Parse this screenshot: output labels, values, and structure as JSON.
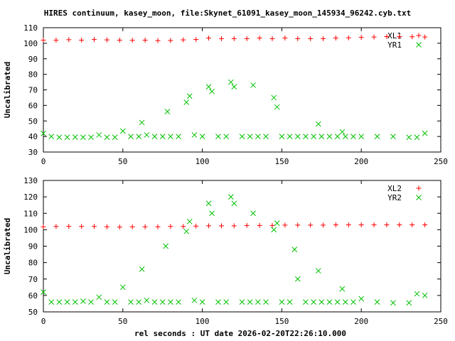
{
  "figure": {
    "title": "HIRES continuum, kasey_moon, file:Skynet_61091_kasey_moon_145934_96242.cyb.txt",
    "xlabel": "rel seconds : UT date 2026-02-20T22:26:10.000"
  },
  "chart_data": [
    {
      "type": "scatter",
      "ylabel": "Uncalibrated",
      "xlim": [
        0,
        250
      ],
      "ylim": [
        30,
        110
      ],
      "xticks": [
        0,
        50,
        100,
        150,
        200,
        250
      ],
      "yticks": [
        30,
        40,
        50,
        60,
        70,
        80,
        90,
        100,
        110
      ],
      "grid": false,
      "legend": "top-right",
      "series": [
        {
          "name": "XL1",
          "marker": "plus",
          "color": "#ff0000",
          "x": [
            0,
            8,
            16,
            24,
            32,
            40,
            48,
            56,
            64,
            72,
            80,
            88,
            96,
            104,
            112,
            120,
            128,
            136,
            144,
            152,
            160,
            168,
            176,
            184,
            192,
            200,
            208,
            216,
            224,
            232,
            240
          ],
          "y": [
            102.0,
            102.0,
            102.3,
            102.0,
            102.4,
            102.2,
            102.0,
            101.9,
            102.0,
            101.7,
            101.8,
            102.2,
            102.4,
            103.3,
            103.0,
            103.0,
            103.0,
            103.4,
            103.0,
            103.4,
            103.0,
            103.0,
            103.0,
            103.4,
            103.5,
            103.8,
            104.0,
            104.3,
            104.3,
            104.2,
            104.0
          ]
        },
        {
          "name": "YR1",
          "marker": "cross",
          "color": "#00c000",
          "x": [
            0,
            5,
            10,
            15,
            20,
            25,
            30,
            35,
            40,
            45,
            50,
            55,
            60,
            62,
            65,
            70,
            75,
            78,
            80,
            85,
            90,
            92,
            95,
            100,
            104,
            106,
            110,
            115,
            118,
            120,
            125,
            130,
            132,
            135,
            140,
            145,
            147,
            150,
            155,
            160,
            165,
            170,
            173,
            175,
            180,
            185,
            188,
            190,
            195,
            200,
            210,
            220,
            230,
            235,
            240
          ],
          "y": [
            42,
            40,
            39.5,
            39.5,
            39.6,
            39.5,
            39.5,
            41,
            39.5,
            39.5,
            43.5,
            40,
            40,
            49,
            41,
            40,
            40,
            56,
            40,
            40,
            62,
            66,
            41,
            40,
            72,
            69,
            40,
            40,
            75,
            72,
            40,
            40,
            73,
            40,
            40,
            65,
            59,
            40,
            40,
            40,
            40,
            40,
            48,
            40,
            40,
            40,
            43,
            40,
            40,
            40,
            40,
            40,
            39.5,
            39.5,
            42
          ]
        }
      ]
    },
    {
      "type": "scatter",
      "ylabel": "Uncalibrated",
      "xlim": [
        0,
        250
      ],
      "ylim": [
        50,
        130
      ],
      "xticks": [
        0,
        50,
        100,
        150,
        200,
        250
      ],
      "yticks": [
        50,
        60,
        70,
        80,
        90,
        100,
        110,
        120,
        130
      ],
      "grid": false,
      "legend": "top-right",
      "series": [
        {
          "name": "XL2",
          "marker": "plus",
          "color": "#ff0000",
          "x": [
            0,
            8,
            16,
            24,
            32,
            40,
            48,
            56,
            64,
            72,
            80,
            88,
            96,
            104,
            112,
            120,
            128,
            136,
            144,
            152,
            160,
            168,
            176,
            184,
            192,
            200,
            208,
            216,
            224,
            232,
            240
          ],
          "y": [
            101.8,
            102.0,
            102.0,
            102.0,
            102.0,
            101.8,
            101.6,
            101.8,
            101.8,
            101.8,
            102.0,
            102.0,
            102.2,
            102.4,
            102.4,
            102.4,
            102.6,
            102.6,
            102.6,
            102.8,
            102.8,
            102.8,
            102.8,
            103.0,
            103.0,
            103.0,
            103.0,
            103.0,
            103.0,
            103.0,
            103.0
          ]
        },
        {
          "name": "YR2",
          "marker": "cross",
          "color": "#00c000",
          "x": [
            0,
            5,
            10,
            15,
            20,
            25,
            30,
            35,
            40,
            45,
            50,
            55,
            60,
            62,
            65,
            70,
            75,
            77,
            80,
            85,
            90,
            92,
            95,
            100,
            104,
            106,
            110,
            115,
            118,
            120,
            125,
            130,
            132,
            135,
            140,
            145,
            147,
            150,
            155,
            158,
            160,
            165,
            170,
            173,
            175,
            180,
            185,
            188,
            190,
            195,
            200,
            210,
            220,
            230,
            235,
            240
          ],
          "y": [
            62,
            56,
            56,
            56,
            56,
            56.5,
            56,
            59,
            56,
            56,
            65,
            56,
            56,
            76,
            57,
            56,
            56,
            90,
            56,
            56,
            99,
            105,
            57,
            56,
            116,
            110,
            56,
            56,
            120,
            116,
            56,
            56,
            110,
            56,
            56,
            100,
            104,
            56,
            56,
            88,
            70,
            56,
            56,
            75,
            56,
            56,
            56,
            64,
            56,
            56,
            58,
            56,
            55.5,
            55.5,
            61,
            60
          ]
        }
      ]
    }
  ]
}
